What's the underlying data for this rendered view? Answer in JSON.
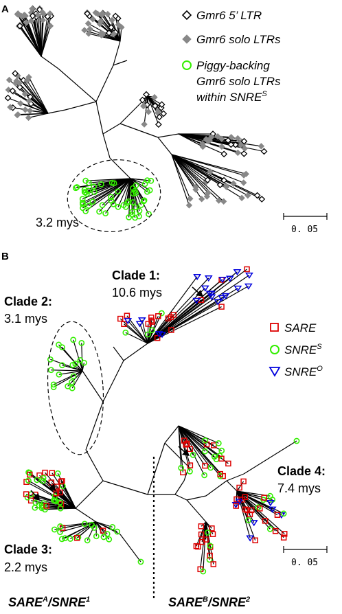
{
  "panel_a": {
    "letter": "A",
    "legend": [
      {
        "symbol": "open-diamond-icon",
        "label": "Gmr6 5’ LTR",
        "color": "#000000"
      },
      {
        "symbol": "filled-diamond-icon",
        "label": "Gmr6 solo LTRs",
        "color": "#888888"
      },
      {
        "symbol": "green-circle-icon",
        "label_line1": "Piggy-backing",
        "label_line2": "Gmr6 solo LTRs",
        "label_line3_main": "within SNRE",
        "label_line3_sup": "S",
        "color": "#33ee00"
      }
    ],
    "cluster_age": "3.2 mys",
    "scale_label": "0. 05"
  },
  "panel_b": {
    "letter": "B",
    "legend": [
      {
        "symbol": "red-square-icon",
        "label": "SARE",
        "color": "#dd0000"
      },
      {
        "symbol": "green-circle-icon",
        "label_main": "SNRE",
        "label_sup": "S",
        "color": "#33ee00"
      },
      {
        "symbol": "blue-triangle-icon",
        "label_main": "SNRE",
        "label_sup": "O",
        "color": "#0000dd"
      }
    ],
    "clades": [
      {
        "title": "Clade 1:",
        "age": "10.6 mys"
      },
      {
        "title": "Clade 2:",
        "age": "3.1 mys"
      },
      {
        "title": "Clade 3:",
        "age": "2.2 mys"
      },
      {
        "title": "Clade 4:",
        "age": "7.4 mys"
      }
    ],
    "scale_label": "0. 05",
    "bottom_left": {
      "main1": "SARE",
      "sup1": "A",
      "sep": "/",
      "main2": "SNRE",
      "sup2": "1"
    },
    "bottom_right": {
      "main1": "SARE",
      "sup1": "B",
      "sep": "/",
      "main2": "SNRE",
      "sup2": "2"
    }
  }
}
